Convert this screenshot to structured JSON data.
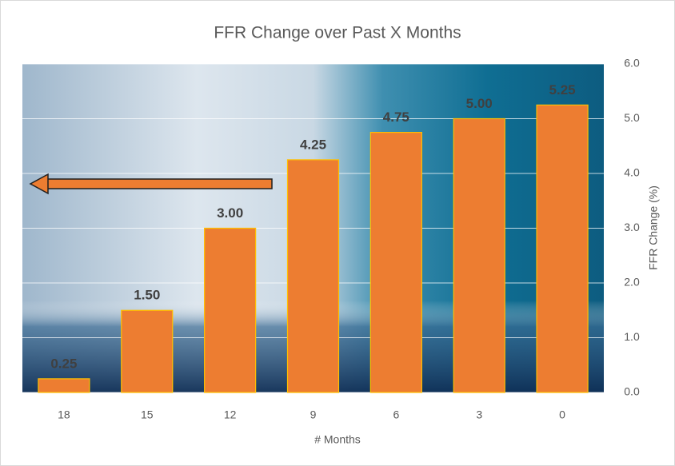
{
  "chart_data": {
    "type": "bar",
    "title": "FFR Change over Past X Months",
    "categories": [
      "18",
      "15",
      "12",
      "9",
      "6",
      "3",
      "0"
    ],
    "values": [
      0.25,
      1.5,
      3,
      4.25,
      4.75,
      5,
      5.25
    ],
    "value_labels": [
      "0.25",
      "1.50",
      "3.00",
      "4.25",
      "4.75",
      "5.00",
      "5.25"
    ],
    "color": "#ed7d31",
    "x_label": "# Months",
    "y_label": "FFR Change (%)",
    "ylim": [
      0,
      6
    ],
    "yticks": [
      {
        "value": 0,
        "label": "0.0"
      },
      {
        "value": 1,
        "label": "1.0"
      },
      {
        "value": 2,
        "label": "2.0"
      },
      {
        "value": 3,
        "label": "3.0"
      },
      {
        "value": 4,
        "label": "4.0"
      },
      {
        "value": 5,
        "label": "5.0"
      },
      {
        "value": 6,
        "label": "6.0"
      }
    ],
    "grid": true
  }
}
